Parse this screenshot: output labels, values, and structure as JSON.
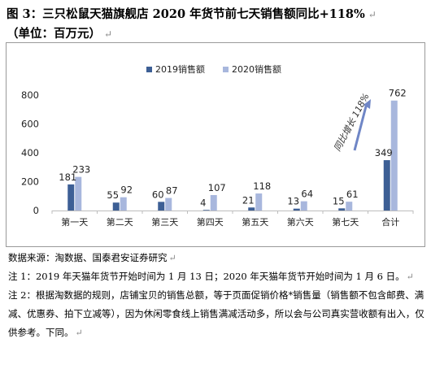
{
  "title_line1": "图 3：三只松鼠天猫旗舰店 2020 年货节前七天销售额同比+118%",
  "title_line2": "（单位：百万元）",
  "chart_data": {
    "type": "bar",
    "categories": [
      "第一天",
      "第二天",
      "第三天",
      "第四天",
      "第五天",
      "第六天",
      "第七天",
      "合计"
    ],
    "series": [
      {
        "name": "2019销售额",
        "color": "#3d5f95",
        "values": [
          181,
          55,
          60,
          4,
          21,
          13,
          15,
          349
        ]
      },
      {
        "name": "2020销售额",
        "color": "#a8b7dd",
        "values": [
          233,
          92,
          87,
          107,
          118,
          64,
          61,
          762
        ]
      }
    ],
    "ylim": [
      0,
      800
    ],
    "yticks": [
      0,
      200,
      400,
      600,
      800
    ],
    "legend_position": "top",
    "grid": false,
    "annotation": "同比增长 118%"
  },
  "notes": {
    "source": "数据来源：淘数据、国泰君安证券研究",
    "note1": "注 1：2019 年天猫年货节开始时间为 1 月 13 日；2020 年天猫年货节开始时间为 1 月 6 日。",
    "note2": "注 2：根据淘数据的规则，店铺宝贝的销售总额，等于页面促销价格*销售量（销售额不包含邮费、满减、优惠券、拍下立减等），因为休闲零食线上销售满减活动多，所以会与公司真实营收额有出入，仅供参考。下同。"
  }
}
